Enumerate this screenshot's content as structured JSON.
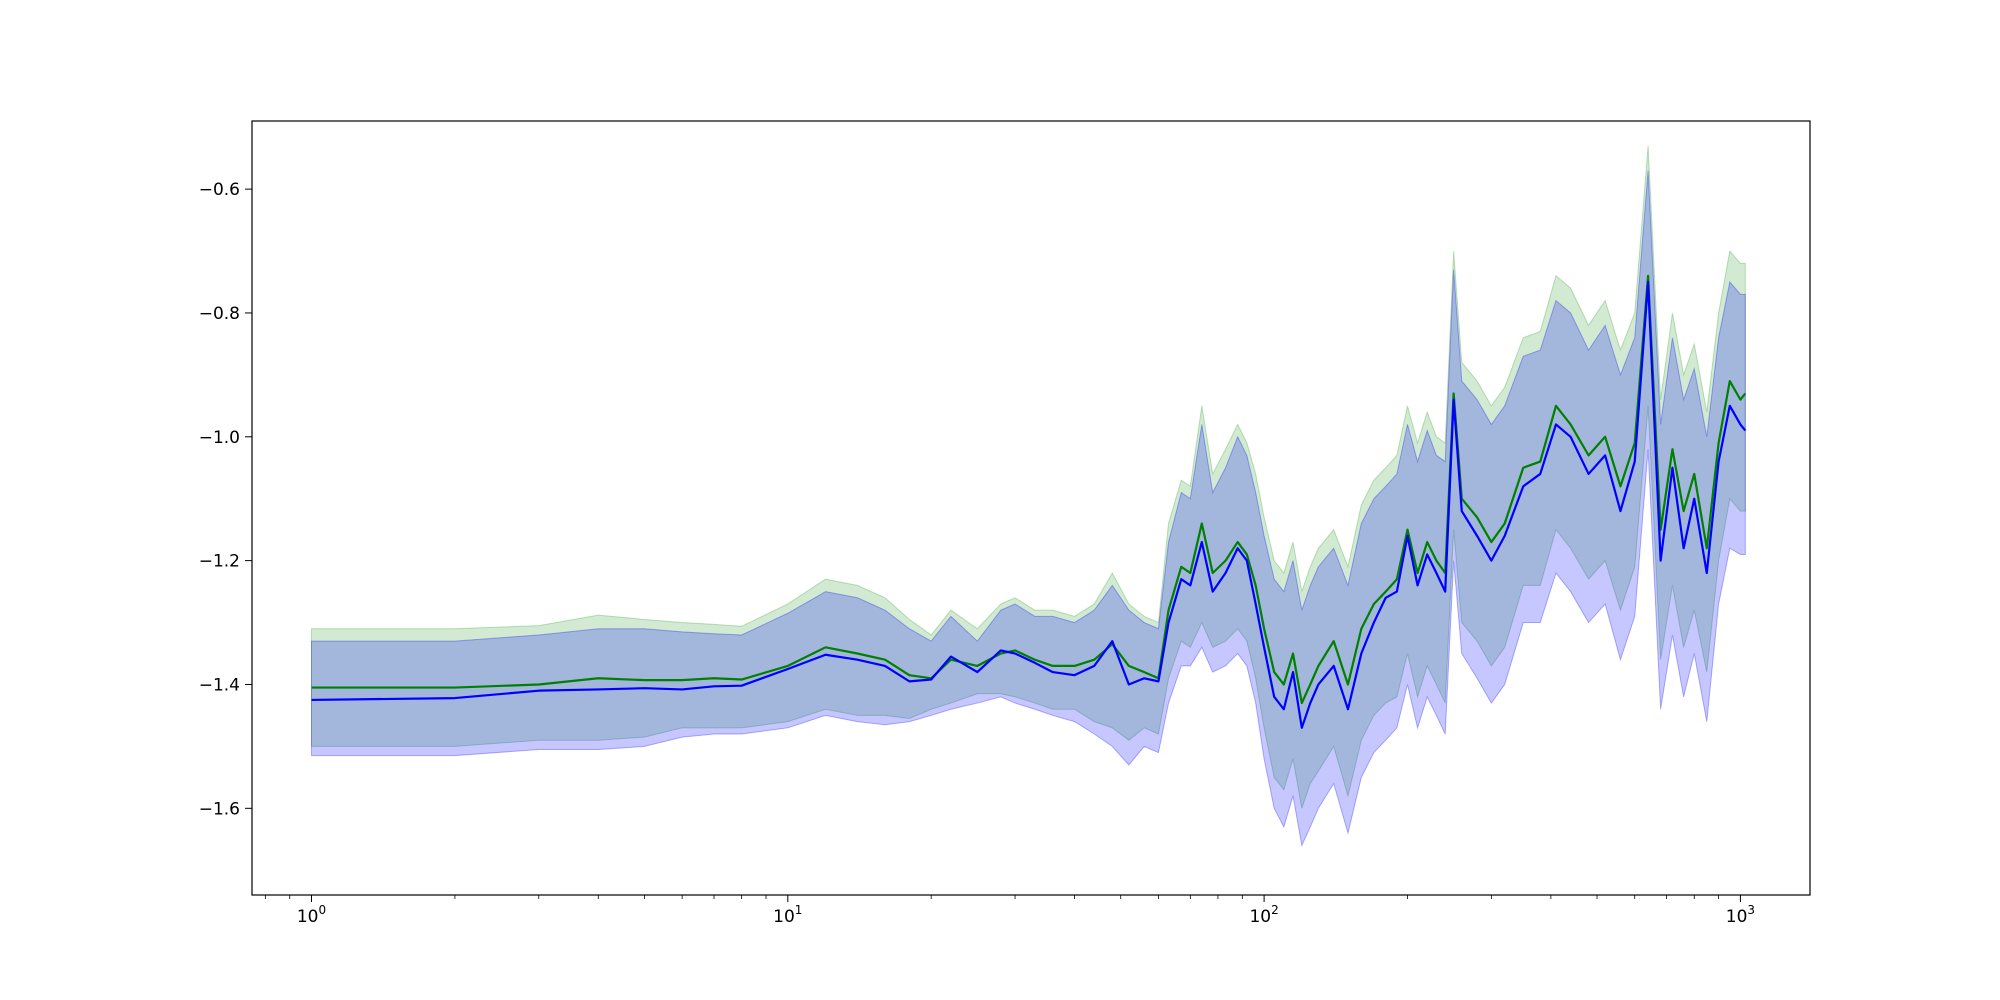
{
  "chart_data": {
    "type": "line",
    "title": "",
    "xlabel": "",
    "ylabel": "",
    "xscale": "log",
    "xlim": [
      0.75,
      1400
    ],
    "ylim": [
      -1.74,
      -0.49
    ],
    "grid": false,
    "legend": "none",
    "x_ticks": [
      {
        "base": "10",
        "exp": "0",
        "value": 1
      },
      {
        "base": "10",
        "exp": "1",
        "value": 10
      },
      {
        "base": "10",
        "exp": "2",
        "value": 100
      },
      {
        "base": "10",
        "exp": "3",
        "value": 1000
      }
    ],
    "y_ticks": [
      {
        "label": "−0.6",
        "value": -0.6
      },
      {
        "label": "−0.8",
        "value": -0.8
      },
      {
        "label": "−1.0",
        "value": -1.0
      },
      {
        "label": "−1.2",
        "value": -1.2
      },
      {
        "label": "−1.4",
        "value": -1.4
      },
      {
        "label": "−1.6",
        "value": -1.6
      }
    ],
    "series": [
      {
        "color": "#008000",
        "band_color": "#2ca02c",
        "x": [
          1,
          2,
          3,
          4,
          5,
          6,
          7,
          8,
          10,
          12,
          14,
          16,
          18,
          20,
          22,
          25,
          28,
          30,
          33,
          36,
          40,
          44,
          48,
          52,
          56,
          60,
          63,
          67,
          70,
          74,
          78,
          83,
          88,
          92,
          96,
          100,
          105,
          110,
          115,
          120,
          125,
          130,
          140,
          150,
          160,
          170,
          180,
          190,
          200,
          210,
          220,
          230,
          240,
          250,
          260,
          280,
          300,
          320,
          350,
          380,
          410,
          440,
          480,
          520,
          560,
          600,
          640,
          680,
          720,
          760,
          800,
          850,
          900,
          950,
          1000,
          1024
        ],
        "mean": [
          -1.405,
          -1.405,
          -1.4,
          -1.39,
          -1.393,
          -1.393,
          -1.39,
          -1.392,
          -1.37,
          -1.34,
          -1.35,
          -1.36,
          -1.385,
          -1.39,
          -1.36,
          -1.37,
          -1.35,
          -1.345,
          -1.36,
          -1.37,
          -1.37,
          -1.36,
          -1.335,
          -1.37,
          -1.38,
          -1.39,
          -1.28,
          -1.21,
          -1.22,
          -1.14,
          -1.22,
          -1.2,
          -1.17,
          -1.19,
          -1.24,
          -1.31,
          -1.38,
          -1.4,
          -1.35,
          -1.43,
          -1.4,
          -1.37,
          -1.33,
          -1.4,
          -1.31,
          -1.27,
          -1.25,
          -1.23,
          -1.15,
          -1.22,
          -1.17,
          -1.2,
          -1.22,
          -0.93,
          -1.1,
          -1.13,
          -1.17,
          -1.14,
          -1.05,
          -1.04,
          -0.95,
          -0.98,
          -1.03,
          -1.0,
          -1.08,
          -1.01,
          -0.74,
          -1.15,
          -1.02,
          -1.12,
          -1.06,
          -1.18,
          -1.01,
          -0.91,
          -0.94,
          -0.93
        ],
        "lower": [
          -1.5,
          -1.5,
          -1.49,
          -1.49,
          -1.485,
          -1.47,
          -1.47,
          -1.47,
          -1.46,
          -1.44,
          -1.45,
          -1.45,
          -1.455,
          -1.44,
          -1.43,
          -1.415,
          -1.415,
          -1.42,
          -1.43,
          -1.44,
          -1.44,
          -1.46,
          -1.47,
          -1.49,
          -1.47,
          -1.48,
          -1.39,
          -1.33,
          -1.34,
          -1.3,
          -1.34,
          -1.33,
          -1.31,
          -1.33,
          -1.39,
          -1.47,
          -1.55,
          -1.57,
          -1.52,
          -1.6,
          -1.56,
          -1.54,
          -1.5,
          -1.58,
          -1.49,
          -1.45,
          -1.43,
          -1.42,
          -1.35,
          -1.42,
          -1.37,
          -1.4,
          -1.43,
          -1.15,
          -1.3,
          -1.33,
          -1.37,
          -1.34,
          -1.24,
          -1.24,
          -1.15,
          -1.18,
          -1.23,
          -1.2,
          -1.28,
          -1.21,
          -0.95,
          -1.36,
          -1.24,
          -1.34,
          -1.28,
          -1.38,
          -1.2,
          -1.1,
          -1.12,
          -1.12
        ],
        "upper": [
          -1.31,
          -1.31,
          -1.305,
          -1.288,
          -1.295,
          -1.3,
          -1.303,
          -1.306,
          -1.27,
          -1.23,
          -1.24,
          -1.26,
          -1.295,
          -1.32,
          -1.28,
          -1.31,
          -1.27,
          -1.26,
          -1.28,
          -1.28,
          -1.29,
          -1.27,
          -1.22,
          -1.27,
          -1.29,
          -1.3,
          -1.14,
          -1.07,
          -1.08,
          -0.95,
          -1.06,
          -1.02,
          -0.98,
          -1.01,
          -1.06,
          -1.13,
          -1.2,
          -1.22,
          -1.17,
          -1.25,
          -1.21,
          -1.18,
          -1.15,
          -1.21,
          -1.11,
          -1.07,
          -1.05,
          -1.03,
          -0.95,
          -1.01,
          -0.96,
          -1.0,
          -1.01,
          -0.7,
          -0.88,
          -0.91,
          -0.95,
          -0.92,
          -0.84,
          -0.83,
          -0.74,
          -0.76,
          -0.82,
          -0.78,
          -0.86,
          -0.8,
          -0.53,
          -0.94,
          -0.8,
          -0.9,
          -0.85,
          -0.96,
          -0.8,
          -0.7,
          -0.72,
          -0.72
        ]
      },
      {
        "color": "#0000ff",
        "band_color": "#0000ff",
        "x": [
          1,
          2,
          3,
          4,
          5,
          6,
          7,
          8,
          10,
          12,
          14,
          16,
          18,
          20,
          22,
          25,
          28,
          30,
          33,
          36,
          40,
          44,
          48,
          52,
          56,
          60,
          63,
          67,
          70,
          74,
          78,
          83,
          88,
          92,
          96,
          100,
          105,
          110,
          115,
          120,
          125,
          130,
          140,
          150,
          160,
          170,
          180,
          190,
          200,
          210,
          220,
          230,
          240,
          250,
          260,
          280,
          300,
          320,
          350,
          380,
          410,
          440,
          480,
          520,
          560,
          600,
          640,
          680,
          720,
          760,
          800,
          850,
          900,
          950,
          1000,
          1024
        ],
        "mean": [
          -1.425,
          -1.422,
          -1.41,
          -1.408,
          -1.406,
          -1.408,
          -1.403,
          -1.402,
          -1.375,
          -1.352,
          -1.36,
          -1.37,
          -1.395,
          -1.392,
          -1.355,
          -1.38,
          -1.345,
          -1.35,
          -1.365,
          -1.38,
          -1.385,
          -1.37,
          -1.33,
          -1.4,
          -1.39,
          -1.395,
          -1.3,
          -1.23,
          -1.24,
          -1.17,
          -1.25,
          -1.22,
          -1.18,
          -1.2,
          -1.27,
          -1.34,
          -1.42,
          -1.44,
          -1.38,
          -1.47,
          -1.43,
          -1.4,
          -1.37,
          -1.44,
          -1.35,
          -1.3,
          -1.26,
          -1.25,
          -1.16,
          -1.24,
          -1.19,
          -1.22,
          -1.25,
          -0.94,
          -1.12,
          -1.16,
          -1.2,
          -1.16,
          -1.08,
          -1.06,
          -0.98,
          -1.0,
          -1.06,
          -1.03,
          -1.12,
          -1.04,
          -0.75,
          -1.2,
          -1.05,
          -1.18,
          -1.1,
          -1.22,
          -1.04,
          -0.95,
          -0.98,
          -0.99
        ],
        "lower": [
          -1.515,
          -1.515,
          -1.505,
          -1.505,
          -1.5,
          -1.485,
          -1.48,
          -1.48,
          -1.47,
          -1.45,
          -1.46,
          -1.465,
          -1.46,
          -1.45,
          -1.44,
          -1.43,
          -1.42,
          -1.43,
          -1.44,
          -1.45,
          -1.46,
          -1.48,
          -1.5,
          -1.53,
          -1.5,
          -1.51,
          -1.43,
          -1.37,
          -1.37,
          -1.34,
          -1.38,
          -1.37,
          -1.35,
          -1.37,
          -1.43,
          -1.52,
          -1.6,
          -1.63,
          -1.58,
          -1.66,
          -1.63,
          -1.6,
          -1.56,
          -1.64,
          -1.55,
          -1.51,
          -1.49,
          -1.47,
          -1.4,
          -1.47,
          -1.42,
          -1.45,
          -1.48,
          -1.2,
          -1.35,
          -1.39,
          -1.43,
          -1.4,
          -1.3,
          -1.3,
          -1.22,
          -1.25,
          -1.3,
          -1.27,
          -1.36,
          -1.29,
          -1.02,
          -1.44,
          -1.32,
          -1.42,
          -1.35,
          -1.46,
          -1.27,
          -1.18,
          -1.19,
          -1.19
        ],
        "upper": [
          -1.33,
          -1.33,
          -1.32,
          -1.31,
          -1.31,
          -1.315,
          -1.318,
          -1.32,
          -1.285,
          -1.25,
          -1.26,
          -1.28,
          -1.31,
          -1.33,
          -1.29,
          -1.33,
          -1.28,
          -1.27,
          -1.29,
          -1.29,
          -1.3,
          -1.28,
          -1.24,
          -1.28,
          -1.3,
          -1.31,
          -1.17,
          -1.09,
          -1.1,
          -0.98,
          -1.09,
          -1.05,
          -1.0,
          -1.03,
          -1.09,
          -1.16,
          -1.23,
          -1.25,
          -1.2,
          -1.28,
          -1.24,
          -1.21,
          -1.18,
          -1.24,
          -1.14,
          -1.1,
          -1.08,
          -1.06,
          -0.98,
          -1.04,
          -0.99,
          -1.03,
          -1.04,
          -0.73,
          -0.91,
          -0.94,
          -0.98,
          -0.95,
          -0.87,
          -0.86,
          -0.78,
          -0.8,
          -0.86,
          -0.82,
          -0.9,
          -0.84,
          -0.57,
          -0.98,
          -0.84,
          -0.94,
          -0.89,
          -1.0,
          -0.84,
          -0.75,
          -0.77,
          -0.77
        ]
      }
    ]
  }
}
